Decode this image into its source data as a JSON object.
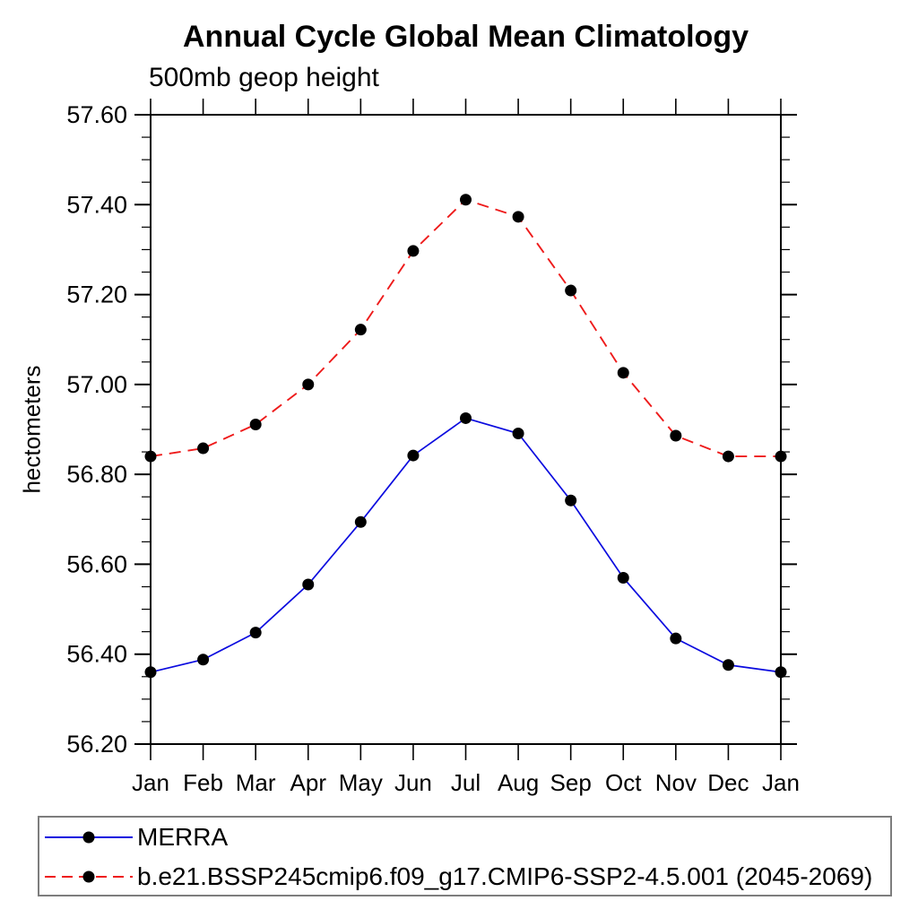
{
  "header": {
    "title": "Annual Cycle Global Mean Climatology",
    "subtitle": "500mb geop height"
  },
  "axes": {
    "y_unit_label": "hectometers",
    "y_tick_labels": [
      "56.20",
      "56.40",
      "56.60",
      "56.80",
      "57.00",
      "57.20",
      "57.40",
      "57.60"
    ],
    "x_tick_labels": [
      "Jan",
      "Feb",
      "Mar",
      "Apr",
      "May",
      "Jun",
      "Jul",
      "Aug",
      "Sep",
      "Oct",
      "Nov",
      "Dec",
      "Jan"
    ]
  },
  "colors": {
    "axis": "#000000",
    "marker": "#000000",
    "merra_line": "#0b0bdf",
    "model_line": "#ee1b1b",
    "legend_border": "#7d7d7d"
  },
  "chart_data": {
    "type": "line",
    "title": "Annual Cycle Global Mean Climatology",
    "subtitle": "500mb geop height",
    "xlabel": "",
    "ylabel": "hectometers",
    "categories": [
      "Jan",
      "Feb",
      "Mar",
      "Apr",
      "May",
      "Jun",
      "Jul",
      "Aug",
      "Sep",
      "Oct",
      "Nov",
      "Dec",
      "Jan"
    ],
    "ylim": [
      56.2,
      57.6
    ],
    "y_major_step": 0.2,
    "y_minor_step": 0.05,
    "grid": false,
    "legend_position": "bottom",
    "series": [
      {
        "name": "MERRA",
        "color": "#0b0bdf",
        "line_style": "solid",
        "marker": "filled-circle",
        "marker_color": "#000000",
        "values": [
          56.36,
          56.388,
          56.448,
          56.555,
          56.694,
          56.842,
          56.925,
          56.891,
          56.742,
          56.57,
          56.435,
          56.376,
          56.36
        ]
      },
      {
        "name": "b.e21.BSSP245cmip6.f09_g17.CMIP6-SSP2-4.5.001 (2045-2069)",
        "color": "#ee1b1b",
        "line_style": "dashed",
        "marker": "filled-circle",
        "marker_color": "#000000",
        "values": [
          56.84,
          56.858,
          56.911,
          57.0,
          57.122,
          57.297,
          57.411,
          57.373,
          57.209,
          57.026,
          56.886,
          56.84,
          56.84
        ]
      }
    ]
  }
}
